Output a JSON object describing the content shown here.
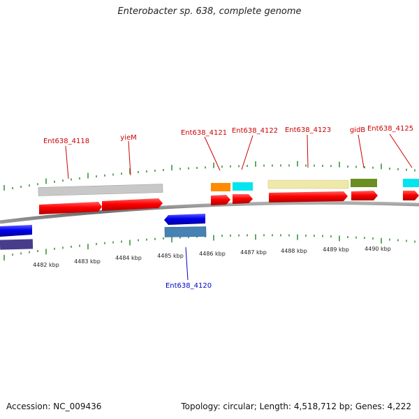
{
  "header": {
    "title": "Enterobacter sp. 638, complete genome"
  },
  "footer": {
    "accession": "Accession: NC_009436",
    "summary": "Topology: circular; Length: 4,518,712 bp; Genes: 4,222"
  },
  "colors": {
    "backbone": "#808080",
    "forward_label": "#cc0000",
    "reverse_label": "#0000cc",
    "tick": "#2e8b2e",
    "cds": "#ff0000"
  },
  "scale": {
    "unit": "kbp",
    "labels": [
      "4482 kbp",
      "4483 kbp",
      "4484 kbp",
      "4485 kbp",
      "4486 kbp",
      "4487 kbp",
      "4488 kbp",
      "4489 kbp",
      "4490 kbp"
    ]
  },
  "genes": {
    "forward": [
      {
        "name": "Ent638_4118",
        "feature_color": "#c0c0c0"
      },
      {
        "name": "yieM",
        "feature_color": "#c0c0c0"
      },
      {
        "name": "Ent638_4121",
        "feature_color": "#ff8c00"
      },
      {
        "name": "Ent638_4122",
        "feature_color": "#00e5ee"
      },
      {
        "name": "Ent638_4123",
        "feature_color": "#eee8aa"
      },
      {
        "name": "gidB",
        "feature_color": "#6b8e23"
      },
      {
        "name": "Ent638_4125",
        "feature_color": "#00e5ee"
      }
    ],
    "reverse": [
      {
        "name": "Ent638_4120",
        "feature_color": "#4682b4"
      }
    ]
  }
}
